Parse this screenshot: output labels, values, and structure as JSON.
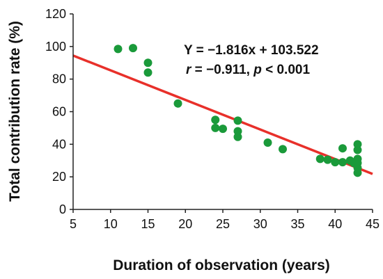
{
  "chart_data": {
    "type": "scatter",
    "xlabel": "Duration of observation (years)",
    "ylabel": "Total contribution rate (%)",
    "xlim": [
      5,
      45
    ],
    "ylim": [
      0,
      120
    ],
    "xticks": [
      5,
      10,
      15,
      20,
      25,
      30,
      35,
      40,
      45
    ],
    "yticks": [
      0,
      20,
      40,
      60,
      80,
      100,
      120
    ],
    "grid": false,
    "points": [
      {
        "x": 11,
        "y": 98.5
      },
      {
        "x": 13,
        "y": 99
      },
      {
        "x": 15,
        "y": 90
      },
      {
        "x": 15,
        "y": 84
      },
      {
        "x": 19,
        "y": 65
      },
      {
        "x": 24,
        "y": 55
      },
      {
        "x": 24,
        "y": 50
      },
      {
        "x": 25,
        "y": 49.5
      },
      {
        "x": 27,
        "y": 54.5
      },
      {
        "x": 27,
        "y": 48
      },
      {
        "x": 27,
        "y": 44.5
      },
      {
        "x": 31,
        "y": 41
      },
      {
        "x": 33,
        "y": 37
      },
      {
        "x": 38,
        "y": 31
      },
      {
        "x": 39,
        "y": 30.5
      },
      {
        "x": 40,
        "y": 29
      },
      {
        "x": 41,
        "y": 37.5
      },
      {
        "x": 41,
        "y": 29
      },
      {
        "x": 42,
        "y": 30
      },
      {
        "x": 42.5,
        "y": 28.5
      },
      {
        "x": 43,
        "y": 40
      },
      {
        "x": 43,
        "y": 36.5
      },
      {
        "x": 43,
        "y": 31
      },
      {
        "x": 43,
        "y": 28.5
      },
      {
        "x": 43,
        "y": 25.5
      },
      {
        "x": 43,
        "y": 22.5
      }
    ],
    "regression": {
      "slope": -1.816,
      "intercept": 103.522,
      "x_range": [
        5,
        45
      ]
    },
    "annotations": {
      "equation": "Y = −1.816x + 103.522",
      "stats": {
        "r_symbol": "r",
        "r_text": " = −0.911, ",
        "p_symbol": "p",
        "p_text": " < 0.001"
      }
    },
    "colors": {
      "points": "#1a9a3a",
      "line": "#e8302a",
      "axis": "#222222"
    }
  }
}
